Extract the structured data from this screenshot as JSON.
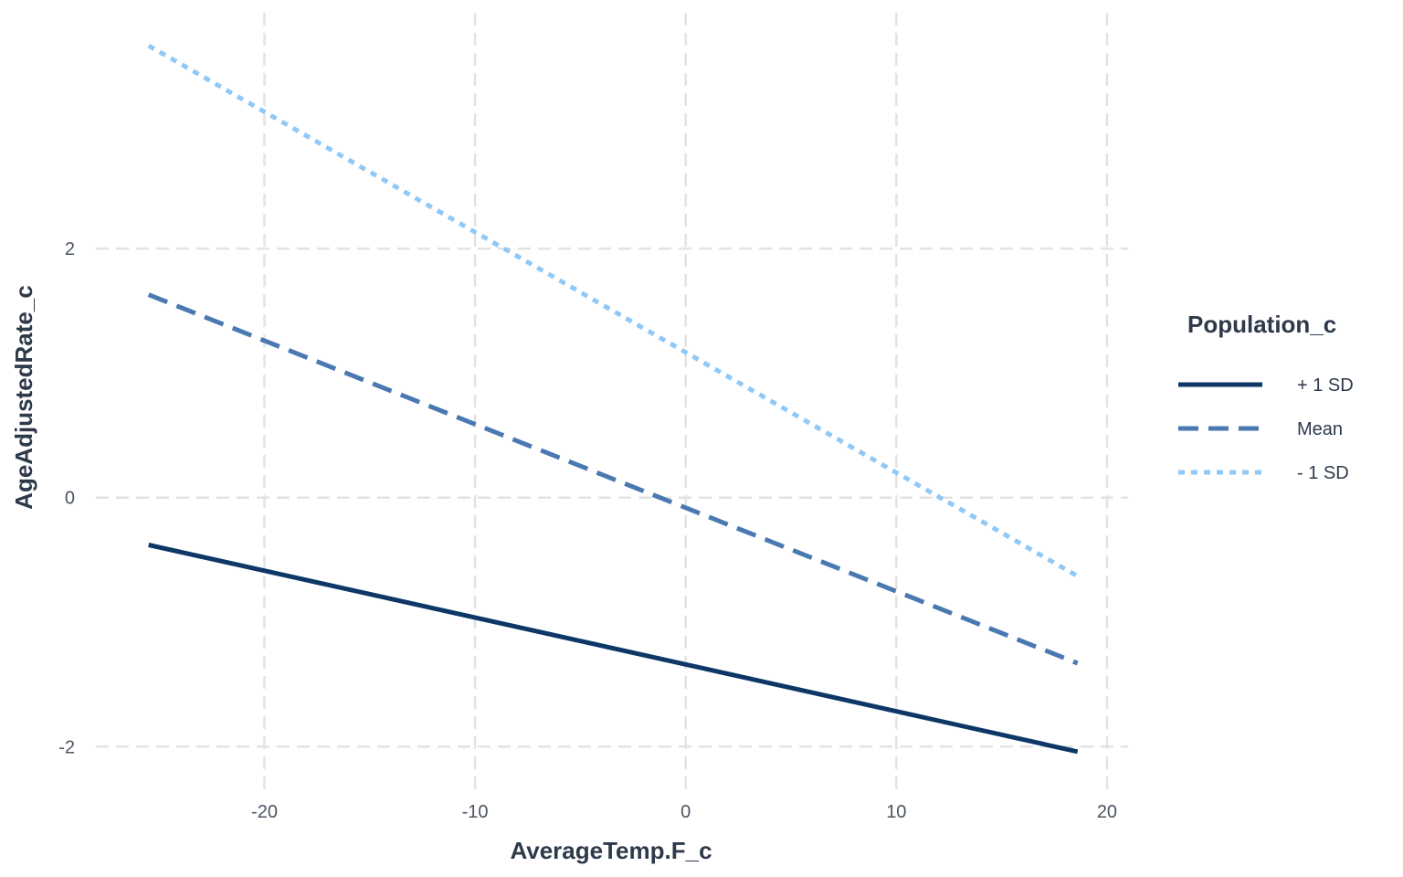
{
  "chart_data": {
    "type": "line",
    "xlabel": "AverageTemp.F_c",
    "ylabel": "AgeAdjustedRate_c",
    "xlim": [
      -28,
      21
    ],
    "ylim": [
      -2.35,
      3.85
    ],
    "xticks": [
      -20,
      -10,
      0,
      10,
      20
    ],
    "yticks": [
      -2,
      0,
      2
    ],
    "xtick_labels": [
      "-20",
      "-10",
      "0",
      "10",
      "20"
    ],
    "ytick_labels": [
      "-2",
      "0",
      "2"
    ],
    "grid": true,
    "legend": {
      "title": "Population_c",
      "placement": "right"
    },
    "series": [
      {
        "name": "+ 1 SD",
        "x": [
          -25.5,
          18.6
        ],
        "y": [
          -0.38,
          -2.04
        ],
        "color": "#0d3766",
        "linestyle": "solid"
      },
      {
        "name": "Mean",
        "x": [
          -25.5,
          18.6
        ],
        "y": [
          1.63,
          -1.33
        ],
        "color": "#4a79b1",
        "linestyle": "dashed"
      },
      {
        "name": "- 1 SD",
        "x": [
          -25.5,
          18.6
        ],
        "y": [
          3.63,
          -0.63
        ],
        "color": "#90c8f6",
        "linestyle": "dotted"
      }
    ]
  }
}
